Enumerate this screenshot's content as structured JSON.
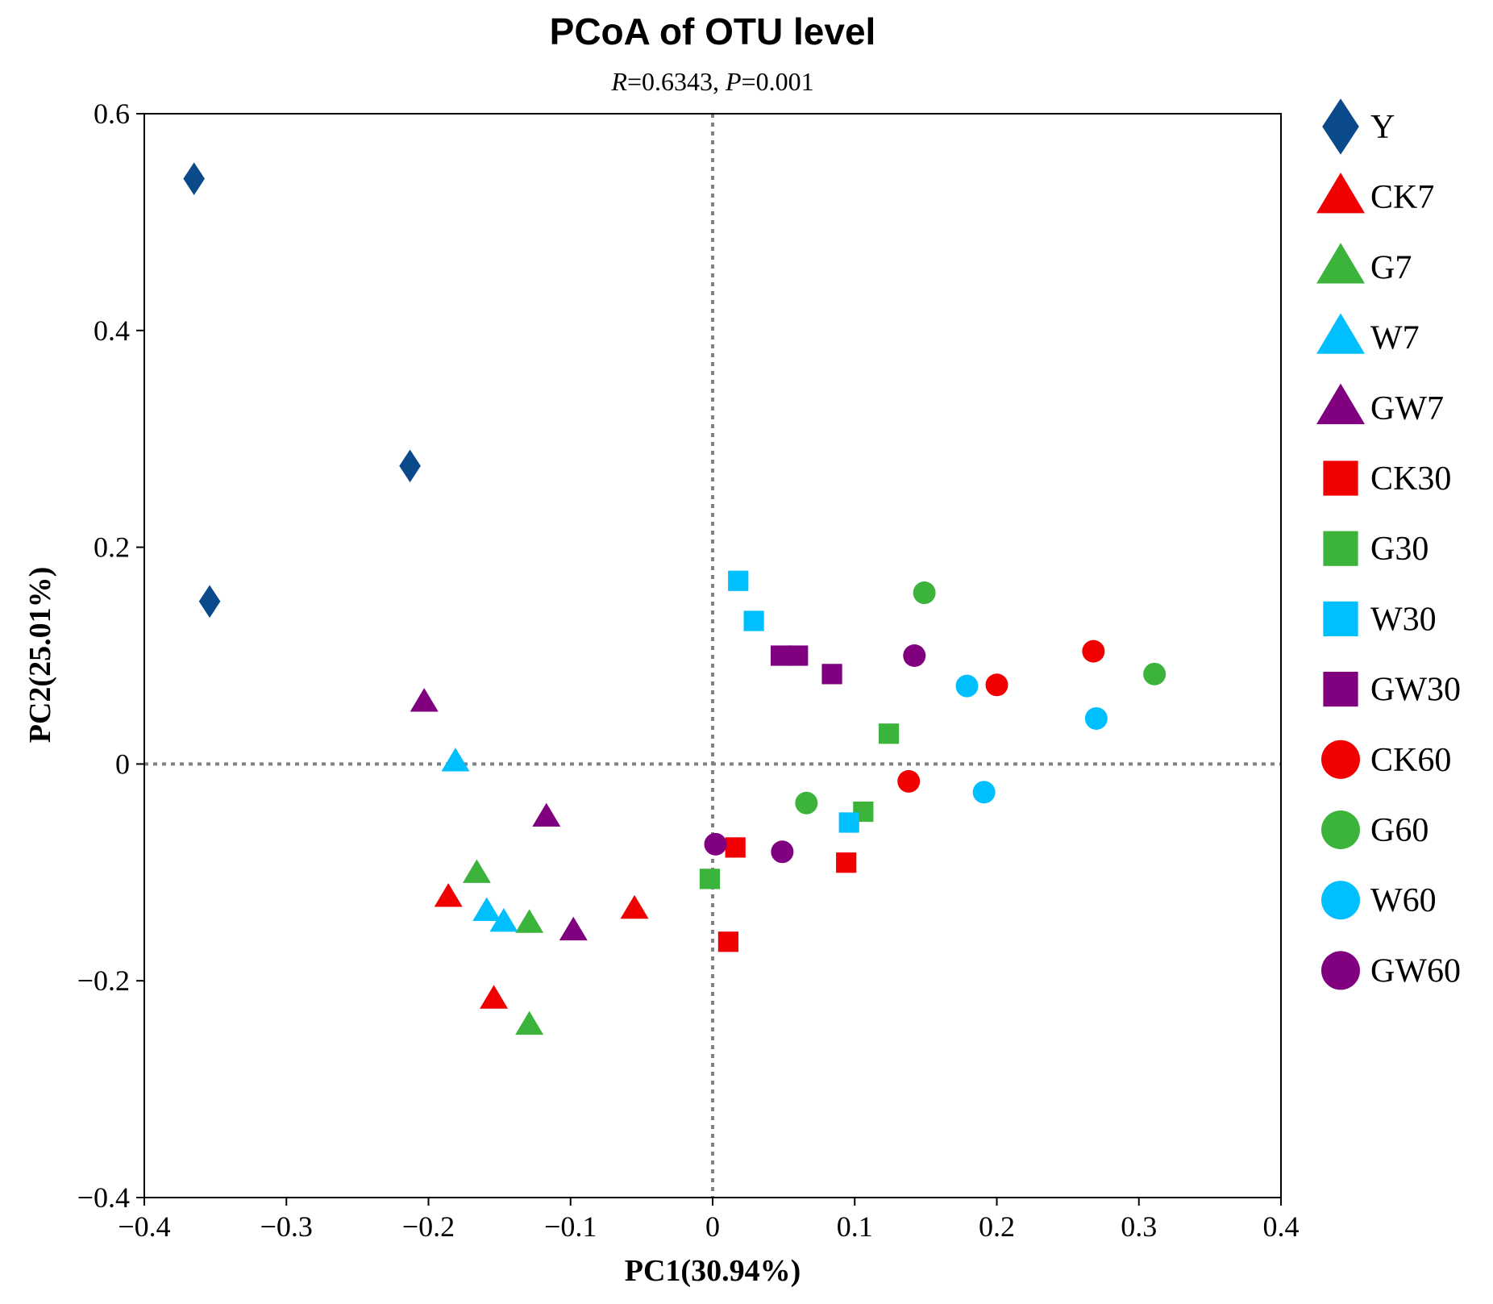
{
  "chart_data": {
    "type": "scatter",
    "title": "PCoA of OTU level",
    "subtitle": {
      "r_label": "R",
      "r_text": "=0.6343, ",
      "p_label": "P",
      "p_text": "=0.001"
    },
    "xlabel": "PC1(30.94%)",
    "ylabel": "PC2(25.01%)",
    "xlim": [
      -0.4,
      0.4
    ],
    "ylim": [
      -0.4,
      0.6
    ],
    "xticks": [
      -0.4,
      -0.3,
      -0.2,
      -0.1,
      0,
      0.1,
      0.2,
      0.3,
      0.4
    ],
    "yticks": [
      -0.4,
      -0.2,
      0,
      0.2,
      0.4,
      0.6
    ],
    "xtick_labels": [
      "−0.4",
      "−0.3",
      "−0.2",
      "−0.1",
      "0",
      "0.1",
      "0.2",
      "0.3",
      "0.4"
    ],
    "ytick_labels": [
      "−0.4",
      "−0.2",
      "0",
      "0.2",
      "0.4",
      "0.6"
    ],
    "reference_lines": {
      "x": 0,
      "y": 0,
      "style": "dotted"
    },
    "legend_position": "right",
    "series": [
      {
        "name": "Y",
        "marker": "diamond",
        "color": "#0A4A8A",
        "points": [
          [
            -0.365,
            0.54
          ],
          [
            -0.213,
            0.275
          ],
          [
            -0.354,
            0.15
          ]
        ]
      },
      {
        "name": "CK7",
        "marker": "triangle",
        "color": "#F00000",
        "points": [
          [
            -0.186,
            -0.123
          ],
          [
            -0.154,
            -0.217
          ],
          [
            -0.055,
            -0.134
          ]
        ]
      },
      {
        "name": "G7",
        "marker": "triangle",
        "color": "#3CB43C",
        "points": [
          [
            -0.166,
            -0.101
          ],
          [
            -0.129,
            -0.147
          ],
          [
            -0.129,
            -0.241
          ]
        ]
      },
      {
        "name": "W7",
        "marker": "triangle",
        "color": "#00BFFF",
        "points": [
          [
            -0.181,
            0.002
          ],
          [
            -0.159,
            -0.136
          ],
          [
            -0.147,
            -0.146
          ]
        ]
      },
      {
        "name": "GW7",
        "marker": "triangle",
        "color": "#800080",
        "points": [
          [
            -0.203,
            0.057
          ],
          [
            -0.117,
            -0.049
          ],
          [
            -0.098,
            -0.154
          ]
        ]
      },
      {
        "name": "CK30",
        "marker": "square",
        "color": "#F00000",
        "points": [
          [
            0.016,
            -0.077
          ],
          [
            0.094,
            -0.091
          ],
          [
            0.011,
            -0.164
          ]
        ]
      },
      {
        "name": "G30",
        "marker": "square",
        "color": "#3CB43C",
        "points": [
          [
            0.124,
            0.028
          ],
          [
            0.106,
            -0.044
          ],
          [
            -0.002,
            -0.106
          ]
        ]
      },
      {
        "name": "W30",
        "marker": "square",
        "color": "#00BFFF",
        "points": [
          [
            0.018,
            0.169
          ],
          [
            0.029,
            0.132
          ],
          [
            0.096,
            -0.054
          ]
        ]
      },
      {
        "name": "GW30",
        "marker": "square",
        "color": "#800080",
        "points": [
          [
            0.048,
            0.1
          ],
          [
            0.06,
            0.1
          ],
          [
            0.084,
            0.083
          ]
        ]
      },
      {
        "name": "CK60",
        "marker": "circle",
        "color": "#F00000",
        "points": [
          [
            0.2,
            0.073
          ],
          [
            0.268,
            0.104
          ],
          [
            0.138,
            -0.016
          ]
        ]
      },
      {
        "name": "G60",
        "marker": "circle",
        "color": "#3CB43C",
        "points": [
          [
            0.149,
            0.158
          ],
          [
            0.311,
            0.083
          ],
          [
            0.066,
            -0.036
          ]
        ]
      },
      {
        "name": "W60",
        "marker": "circle",
        "color": "#00BFFF",
        "points": [
          [
            0.179,
            0.072
          ],
          [
            0.27,
            0.042
          ],
          [
            0.191,
            -0.026
          ]
        ]
      },
      {
        "name": "GW60",
        "marker": "circle",
        "color": "#800080",
        "points": [
          [
            0.142,
            0.1
          ],
          [
            0.049,
            -0.081
          ],
          [
            0.002,
            -0.074
          ]
        ]
      }
    ]
  }
}
